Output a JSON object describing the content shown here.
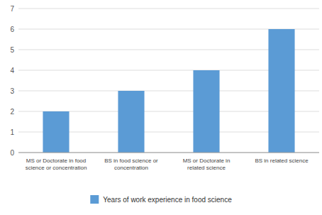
{
  "chart_data": {
    "type": "bar",
    "categories": [
      "MS or Doctorate in food\nscience or concentration",
      "BS in food science or\nconcentration",
      "MS or Doctorate in\nrelated science",
      "BS in related science"
    ],
    "series": [
      {
        "name": "Years of work experience in food science",
        "color": "#5B9BD5",
        "values": [
          2,
          3,
          4,
          6
        ]
      }
    ],
    "ylim": [
      0,
      7
    ],
    "yticks": [
      0,
      1,
      2,
      3,
      4,
      5,
      6,
      7
    ],
    "grid": true,
    "legend": "bottom"
  }
}
